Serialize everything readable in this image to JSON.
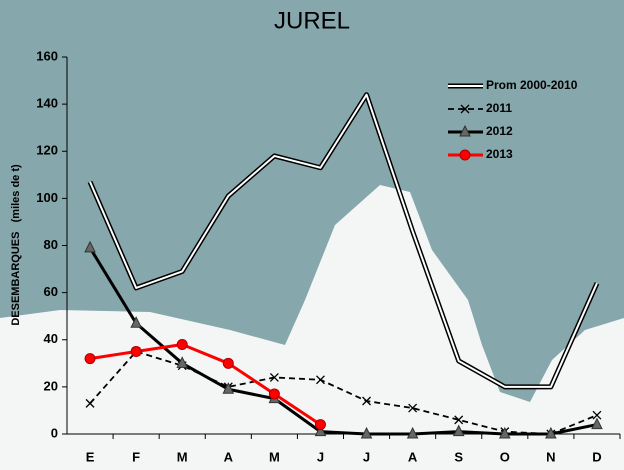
{
  "chart_data": {
    "type": "line",
    "title": "JUREL",
    "ylabel": "DESEMBARQUES   (miles de t)",
    "categories": [
      "E",
      "F",
      "M",
      "A",
      "M",
      "J",
      "J",
      "A",
      "S",
      "O",
      "N",
      "D"
    ],
    "ylim": [
      0,
      160
    ],
    "yticks": [
      0,
      20,
      40,
      60,
      80,
      100,
      120,
      140,
      160
    ],
    "legend": "upper right",
    "series": [
      {
        "name": "Prom 2000-2010",
        "color": "#000000",
        "style": "double",
        "marker": "none",
        "values": [
          107,
          62,
          69,
          101,
          118,
          113,
          144,
          86,
          31,
          20,
          20,
          64
        ]
      },
      {
        "name": "2011",
        "color": "#000000",
        "style": "dashed",
        "marker": "x",
        "values": [
          13,
          35,
          29,
          20,
          24,
          23,
          14,
          11,
          6,
          1,
          0,
          8
        ]
      },
      {
        "name": "2012",
        "color": "#000000",
        "style": "solid",
        "marker": "triangle",
        "values": [
          79,
          47,
          30,
          19,
          15,
          1,
          0,
          0,
          1,
          0,
          0,
          4
        ]
      },
      {
        "name": "2013",
        "color": "#ff0000",
        "style": "solid",
        "marker": "circle",
        "values": [
          32,
          35,
          38,
          30,
          17,
          4,
          null,
          null,
          null,
          null,
          null,
          null
        ]
      }
    ]
  }
}
